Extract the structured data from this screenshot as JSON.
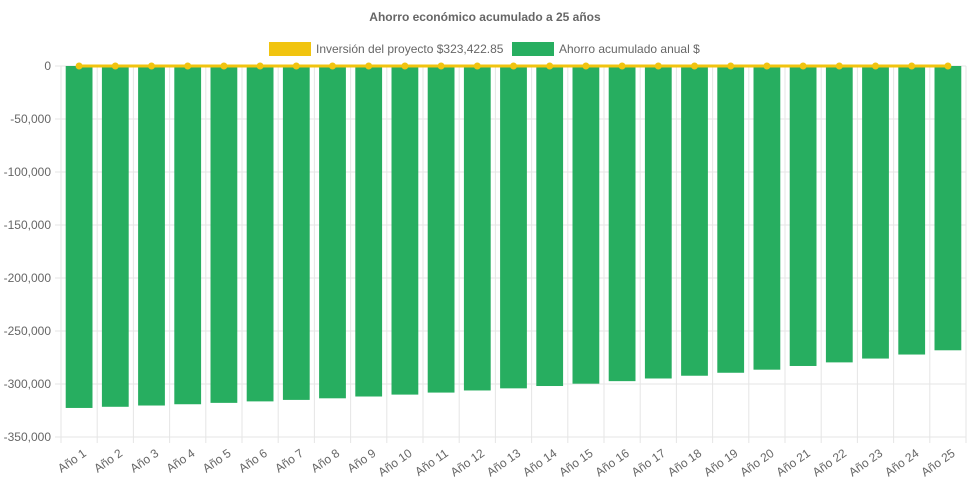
{
  "chart_data": {
    "type": "bar",
    "title": "Ahorro económico acumulado a 25 años",
    "categories": [
      "Año 1",
      "Año 2",
      "Año 3",
      "Año 4",
      "Año 5",
      "Año 6",
      "Año 7",
      "Año 8",
      "Año 9",
      "Año 10",
      "Año 11",
      "Año 12",
      "Año 13",
      "Año 14",
      "Año 15",
      "Año 16",
      "Año 17",
      "Año 18",
      "Año 19",
      "Año 20",
      "Año 21",
      "Año 22",
      "Año 23",
      "Año 24",
      "Año 25"
    ],
    "series": [
      {
        "name": "Inversión del proyecto $323,422.85",
        "type": "line",
        "color": "#f1c40f",
        "values": [
          0,
          0,
          0,
          0,
          0,
          0,
          0,
          0,
          0,
          0,
          0,
          0,
          0,
          0,
          0,
          0,
          0,
          0,
          0,
          0,
          0,
          0,
          0,
          0,
          0
        ]
      },
      {
        "name": "Ahorro acumulado anual $",
        "type": "bar",
        "color": "#27ae60",
        "values": [
          -322600,
          -321500,
          -320300,
          -319100,
          -317800,
          -316400,
          -315000,
          -313500,
          -311800,
          -310000,
          -308100,
          -306100,
          -304100,
          -301900,
          -299700,
          -297300,
          -294800,
          -292200,
          -289400,
          -286500,
          -283000,
          -279600,
          -276000,
          -272200,
          -268200
        ]
      }
    ],
    "y_ticks": [
      "0",
      "-50,000",
      "-100,000",
      "-150,000",
      "-200,000",
      "-250,000",
      "-300,000",
      "-350,000"
    ],
    "ylim": [
      -350000,
      0
    ],
    "grid": true,
    "legend_position": "top"
  }
}
